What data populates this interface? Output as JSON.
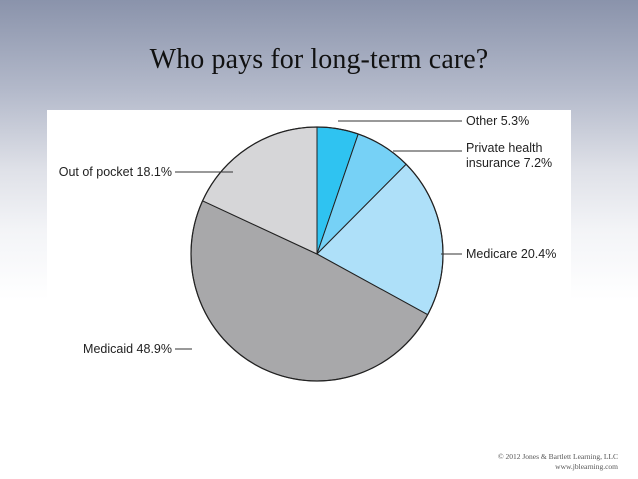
{
  "slide": {
    "title": "Who pays for long-term care?"
  },
  "chart_data": {
    "type": "pie",
    "title": "",
    "slices": [
      {
        "label": "Other",
        "value": 5.3,
        "color": "#2fc3f1"
      },
      {
        "label": "Private health insurance",
        "value": 7.2,
        "color": "#76d1f6"
      },
      {
        "label": "Medicare",
        "value": 20.4,
        "color": "#aee0f9"
      },
      {
        "label": "Medicaid",
        "value": 48.9,
        "color": "#a8a8aa"
      },
      {
        "label": "Out of pocket",
        "value": 18.1,
        "color": "#d6d6d8"
      }
    ],
    "label_text": [
      {
        "lines": [
          "Other 5.3%"
        ]
      },
      {
        "lines": [
          "Private health",
          "insurance 7.2%"
        ]
      },
      {
        "lines": [
          "Medicare 20.4%"
        ]
      },
      {
        "lines": [
          "Medicaid 48.9%"
        ]
      },
      {
        "lines": [
          "Out of pocket 18.1%"
        ]
      }
    ],
    "start_angle": "12 o'clock",
    "direction": "clockwise"
  },
  "footer": {
    "copyright_line1": "© 2012 Jones & Bartlett Learning, LLC",
    "copyright_line2": "www.jblearning.com"
  }
}
